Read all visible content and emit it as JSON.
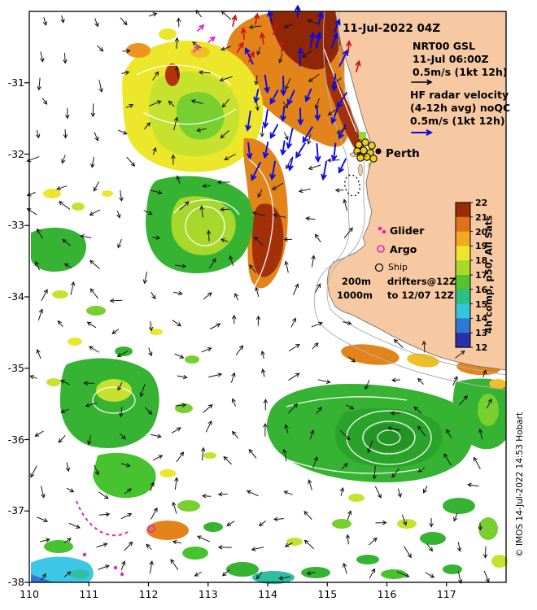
{
  "header": {
    "datetime_label": "11-Jul-2022 04Z"
  },
  "legend": {
    "model_name": "NRT00 GSL",
    "model_time": "11-Jul 06:00Z",
    "model_scale": "0.5m/s (1kt 12h)",
    "hf_line1": "HF radar velocity",
    "hf_line2": "(4-12h avg) noQC",
    "hf_scale": "0.5m/s (1kt 12h)",
    "glider_label": "Glider",
    "argo_label": "Argo",
    "ship_label": "Ship",
    "drifters_line1": "drifters@12Z",
    "drifters_line2": "to 12/07 12Z",
    "isobath_200": "200m",
    "isobath_1000": "1000m"
  },
  "places": {
    "perth": "Perth"
  },
  "colorbar": {
    "label": "4h comp, p50, All Sats",
    "ticks": [
      22,
      21,
      20,
      19,
      18,
      17,
      16,
      15,
      14,
      13,
      12
    ],
    "colors_top_to_bottom": [
      "#9a2b07",
      "#e2701a",
      "#f2a820",
      "#eee428",
      "#a8d82c",
      "#55c22e",
      "#2fbf86",
      "#33c6d8",
      "#2f77d0",
      "#2b2fa8"
    ]
  },
  "credit": "© IMOS 14-Jul-2022 14:53 Hobart",
  "map": {
    "x_ticks": [
      110,
      111,
      112,
      113,
      114,
      115,
      116,
      117
    ],
    "y_ticks": [
      -31,
      -32,
      -33,
      -34,
      -35,
      -36,
      -37,
      -38
    ]
  },
  "colors": {
    "land": "#f7c9a3",
    "model_arrow": "#141414",
    "hf_arrow": "#0a0ae6",
    "drifter_arrow": "#cc1212",
    "glider_color": "#e322c6",
    "mooring_marker": "#e8cf1e"
  },
  "chart_data": {
    "type": "map",
    "variable": "SST composite (4h comp, p50, All Sats)",
    "lon_range": [
      110,
      118
    ],
    "lat_range": [
      -38,
      -30
    ],
    "colorbar_range": [
      12,
      22
    ],
    "overlays": [
      "model velocity vectors (black)",
      "HF radar velocity vectors (blue)",
      "drifter vectors (red)",
      "glider track (magenta)",
      "Argo (magenta circle)",
      "Ship (black circle)",
      "200m / 1000m isobaths"
    ]
  }
}
